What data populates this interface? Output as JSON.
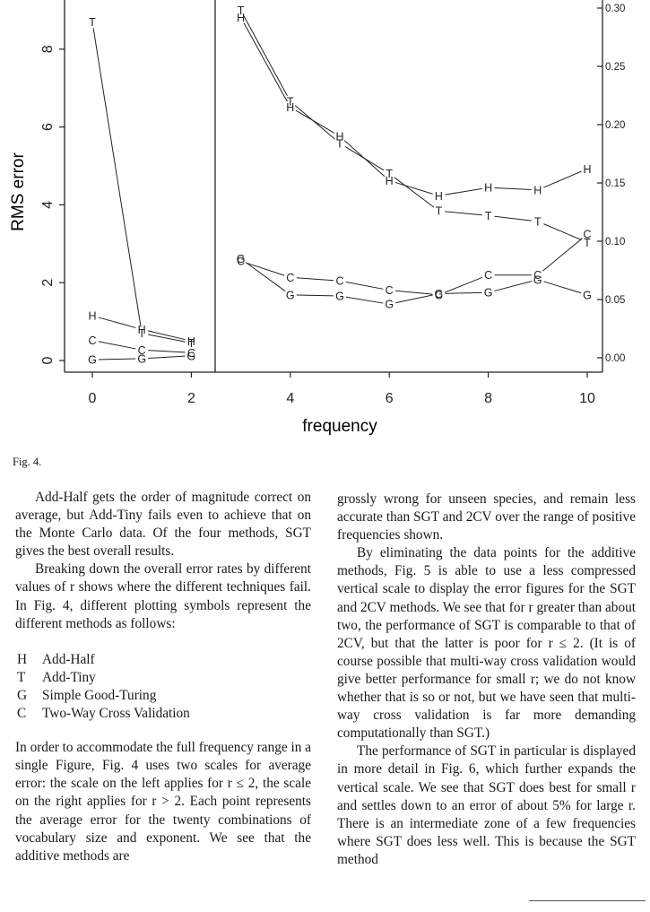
{
  "figure": {
    "ylabel": "RMS error",
    "xlabel": "frequency",
    "left_yticks": [
      "0",
      "2",
      "4",
      "6",
      "8"
    ],
    "right_yticks": [
      "0.00",
      "0.05",
      "0.10",
      "0.15",
      "0.20",
      "0.25",
      "0.30"
    ],
    "xticks": [
      "0",
      "2",
      "4",
      "6",
      "8",
      "10"
    ]
  },
  "chart_data": [
    {
      "type": "line",
      "panel": "left",
      "xlabel": "frequency",
      "ylabel": "RMS error",
      "xlim": [
        0,
        2
      ],
      "ylim": [
        0,
        9
      ],
      "series": [
        {
          "name": "H",
          "x": [
            0,
            1,
            2
          ],
          "y": [
            1.15,
            0.8,
            0.5
          ]
        },
        {
          "name": "T",
          "x": [
            0,
            1,
            2
          ],
          "y": [
            8.7,
            0.7,
            0.45
          ]
        },
        {
          "name": "C",
          "x": [
            0,
            1,
            2
          ],
          "y": [
            0.52,
            0.27,
            0.2
          ]
        },
        {
          "name": "G",
          "x": [
            0,
            1,
            2
          ],
          "y": [
            0.02,
            0.05,
            0.12
          ]
        }
      ]
    },
    {
      "type": "line",
      "panel": "right",
      "xlabel": "frequency",
      "ylim": [
        0,
        0.3
      ],
      "xlim": [
        3,
        10
      ],
      "series": [
        {
          "name": "H",
          "x": [
            3,
            4,
            5,
            6,
            7,
            8,
            9,
            10
          ],
          "y": [
            0.292,
            0.215,
            0.19,
            0.152,
            0.139,
            0.146,
            0.144,
            0.162
          ]
        },
        {
          "name": "T",
          "x": [
            3,
            4,
            5,
            6,
            7,
            8,
            9,
            10
          ],
          "y": [
            0.298,
            0.22,
            0.184,
            0.158,
            0.126,
            0.122,
            0.117,
            0.099
          ]
        },
        {
          "name": "C",
          "x": [
            3,
            4,
            5,
            6,
            7,
            8,
            9,
            10
          ],
          "y": [
            0.083,
            0.069,
            0.066,
            0.058,
            0.054,
            0.071,
            0.071,
            0.106
          ]
        },
        {
          "name": "G",
          "x": [
            3,
            4,
            5,
            6,
            7,
            8,
            9,
            10
          ],
          "y": [
            0.085,
            0.054,
            0.053,
            0.046,
            0.055,
            0.056,
            0.067,
            0.054
          ]
        }
      ]
    }
  ],
  "caption": "Fig. 4.",
  "col1": {
    "p1": "Add-Half gets the order of magnitude cor­rect on average, but Add-Tiny fails even to achieve that on the Monte Carlo data. Of the four methods, SGT gives the best overall re­sults.",
    "p2": "Breaking down the overall error rates by dif­ferent values of r shows where the different tech­niques fail. In Fig. 4, different plotting symbols represent the different methods as follows:",
    "legend": [
      {
        "sym": "H",
        "label": "Add-Half"
      },
      {
        "sym": "T",
        "label": "Add-Tiny"
      },
      {
        "sym": "G",
        "label": "Simple Good-Turing"
      },
      {
        "sym": "C",
        "label": "Two-Way Cross Validation"
      }
    ],
    "p3": "In order to accommodate the full frequency range in a single Figure, Fig. 4 uses two scales for average error: the scale on the left applies for r ≤ 2, the scale on the right applies for r > 2. Each point represents the average error for the twenty combinations of vocabulary size and ex­ponent. We see that the additive methods are"
  },
  "col2": {
    "p1": "grossly wrong for unseen species, and remain less accurate than SGT and 2CV over the range of positive frequencies shown.",
    "p2": "By eliminating the data points for the addi­tive methods, Fig. 5 is able to use a less com­pressed vertical scale to display the error fig­ures for the SGT and 2CV methods. We see that for r greater than about two, the performance of SGT is comparable to that of 2CV, but that the latter is poor for r ≤ 2. (It is of course possible that multi-way cross validation would give bet­ter performance for small r; we do not know whether that is so or not, but we have seen that multi-way cross validation is far more demand­ing computationally than SGT.)",
    "p3": "The performance of SGT in particular is dis­played in more detail in Fig. 6, which further expands the vertical scale. We see that SGT does best for small r and settles down to an error of about 5% for large r. There is an inter­mediate zone of a few frequencies where SGT does less well. This is because the SGT method"
  }
}
